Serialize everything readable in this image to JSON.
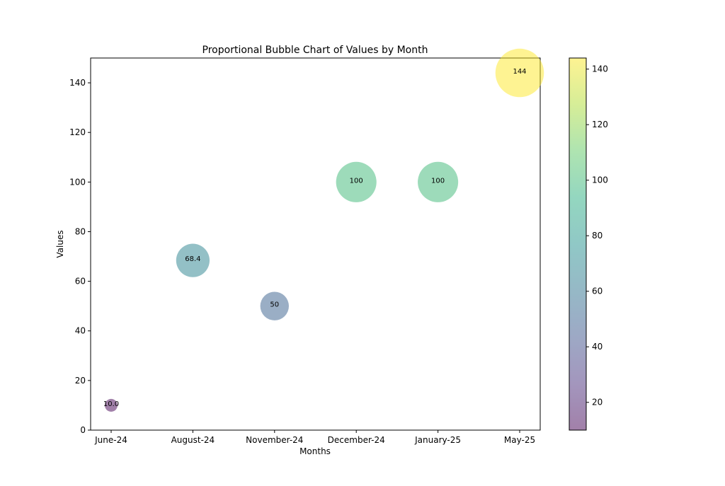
{
  "chart_data": {
    "type": "scatter",
    "title": "Proportional Bubble Chart of Values by Month",
    "xlabel": "Months",
    "ylabel": "Values",
    "categories": [
      "June-24",
      "August-24",
      "November-24",
      "December-24",
      "January-25",
      "May-25"
    ],
    "values": [
      10.0,
      68.4,
      50,
      100,
      100,
      144
    ],
    "labels": [
      "10.0",
      "68.4",
      "50",
      "100",
      "100",
      "144"
    ],
    "ylim": [
      0,
      150
    ],
    "yticks": [
      0,
      20,
      40,
      60,
      80,
      100,
      120,
      140
    ],
    "colorbar": {
      "colormap": "viridis",
      "range": [
        10,
        144
      ],
      "ticks": [
        20,
        40,
        60,
        80,
        100,
        120,
        140
      ]
    },
    "bubble_size": "proportional to value",
    "alpha": 0.5,
    "grid": false,
    "legend": "none"
  }
}
